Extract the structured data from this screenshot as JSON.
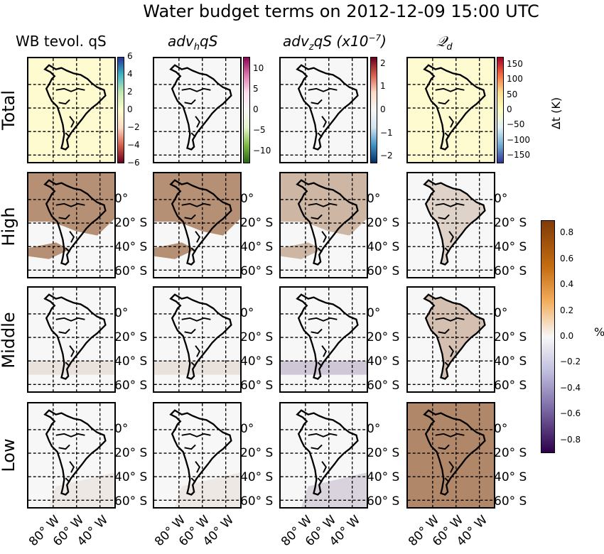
{
  "chart_data": {
    "type": "heatmap",
    "title": "Water budget terms on 2012-12-09 15:00 UTC",
    "columns": [
      {
        "key": "tevol",
        "label": "WB tevol. qS"
      },
      {
        "key": "advh",
        "label": "adv_h qS"
      },
      {
        "key": "advz",
        "label": "adv_z qS (x10^-7)"
      },
      {
        "key": "qd",
        "label": "Q_d"
      }
    ],
    "rows": [
      "Total",
      "High",
      "Middle",
      "Low"
    ],
    "lat_ticks": [
      "0°",
      "20° S",
      "40° S",
      "60° S"
    ],
    "lon_ticks": [
      "80° W",
      "60° W",
      "40° W"
    ],
    "total_colorbars": [
      {
        "column": "tevol",
        "ticks": [
          "6",
          "4",
          "2",
          "0",
          "−2",
          "−4",
          "−6"
        ],
        "range": [
          -6,
          6
        ]
      },
      {
        "column": "advh",
        "ticks": [
          "10",
          "5",
          "0",
          "−5",
          "−10"
        ],
        "range": [
          -13,
          13
        ]
      },
      {
        "column": "advz",
        "ticks": [
          "2",
          "1",
          "0",
          "−1",
          "−2"
        ],
        "range": [
          -2.3,
          2.3
        ]
      },
      {
        "column": "qd",
        "ticks": [
          "150",
          "100",
          "50",
          "0",
          "−50",
          "−100",
          "−150"
        ],
        "range": [
          -175,
          175
        ],
        "label": "Δt (K)"
      }
    ],
    "percent_colorbar": {
      "ticks": [
        "0.8",
        "0.6",
        "0.4",
        "0.2",
        "0.0",
        "−0.2",
        "−0.4",
        "−0.6",
        "−0.8"
      ],
      "range": [
        -0.9,
        0.9
      ],
      "label": "%"
    },
    "panel_fill": {
      "Total": {
        "tevol": 0.55,
        "advh": 0.0,
        "advz": 0.0,
        "qd": 0.55
      },
      "High": {
        "tevol": 0.55,
        "advh": 0.55,
        "advz": 0.35,
        "qd": 0.2
      },
      "Middle": {
        "tevol": 0.12,
        "advh": 0.12,
        "advz": -0.2,
        "qd": 0.3
      },
      "Low": {
        "tevol": 0.08,
        "advh": 0.08,
        "advz": -0.15,
        "qd": 0.6
      }
    }
  },
  "colors": {
    "orange": "#a0520f",
    "light_orange": "#f0a33d",
    "purple": "#8c79b8",
    "yellow_bg": "#fefbd0",
    "panel_bg": "#f7f7f7"
  }
}
